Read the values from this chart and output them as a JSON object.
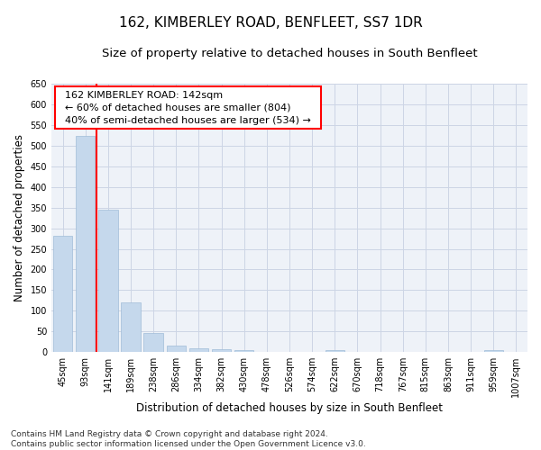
{
  "title": "162, KIMBERLEY ROAD, BENFLEET, SS7 1DR",
  "subtitle": "Size of property relative to detached houses in South Benfleet",
  "xlabel": "Distribution of detached houses by size in South Benfleet",
  "ylabel": "Number of detached properties",
  "bar_color": "#c5d8ec",
  "bar_edge_color": "#a0bcd8",
  "background_color": "#eef2f8",
  "grid_color": "#ccd5e5",
  "categories": [
    "45sqm",
    "93sqm",
    "141sqm",
    "189sqm",
    "238sqm",
    "286sqm",
    "334sqm",
    "382sqm",
    "430sqm",
    "478sqm",
    "526sqm",
    "574sqm",
    "622sqm",
    "670sqm",
    "718sqm",
    "767sqm",
    "815sqm",
    "863sqm",
    "911sqm",
    "959sqm",
    "1007sqm"
  ],
  "values": [
    281,
    523,
    345,
    121,
    47,
    15,
    10,
    8,
    5,
    0,
    0,
    0,
    5,
    0,
    0,
    0,
    0,
    0,
    0,
    5,
    0
  ],
  "property_label": "162 KIMBERLEY ROAD: 142sqm",
  "pct_smaller": 60,
  "n_smaller": 804,
  "pct_larger_semi": 40,
  "n_larger_semi": 534,
  "vline_x": 1.5,
  "ylim": [
    0,
    650
  ],
  "yticks": [
    0,
    50,
    100,
    150,
    200,
    250,
    300,
    350,
    400,
    450,
    500,
    550,
    600,
    650
  ],
  "footnote": "Contains HM Land Registry data © Crown copyright and database right 2024.\nContains public sector information licensed under the Open Government Licence v3.0.",
  "title_fontsize": 11,
  "subtitle_fontsize": 9.5,
  "axis_label_fontsize": 8.5,
  "tick_fontsize": 7,
  "annotation_fontsize": 8,
  "footnote_fontsize": 6.5
}
